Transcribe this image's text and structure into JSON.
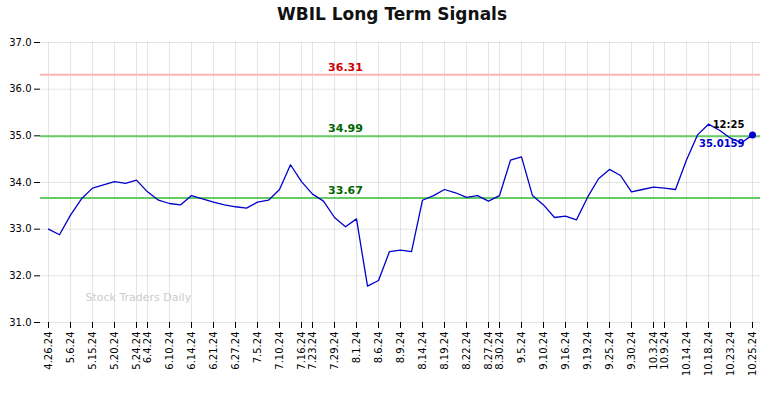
{
  "chart_data": {
    "type": "line",
    "title": "WBIL Long Term Signals",
    "color": "#0000cc",
    "grid": true,
    "ylim": [
      31,
      37
    ],
    "yticks": [
      31,
      32,
      33,
      34,
      35,
      36,
      37
    ],
    "categories": [
      "4.26.24",
      null,
      "5.6.24",
      null,
      "5.15.24",
      null,
      "5.20.24",
      null,
      "5.24.24",
      "6.4.24",
      null,
      "6.10.24",
      null,
      "6.14.24",
      null,
      "6.21.24",
      null,
      "6.27.24",
      null,
      "7.5.24",
      null,
      "7.10.24",
      null,
      "7.16.24",
      "7.23.24",
      null,
      "7.29.24",
      null,
      "8.1.24",
      null,
      "8.6.24",
      null,
      "8.9.24",
      null,
      "8.14.24",
      null,
      "8.19.24",
      null,
      "8.22.24",
      null,
      "8.27.24",
      "8.30.24",
      null,
      "9.5.24",
      null,
      "9.10.24",
      null,
      "9.16.24",
      null,
      "9.19.24",
      null,
      "9.25.24",
      null,
      "9.30.24",
      null,
      "10.3.24",
      "10.9.24",
      null,
      "10.14.24",
      null,
      "10.18.24",
      null,
      "10.23.24",
      null,
      "10.25.24"
    ],
    "values": [
      33.0,
      32.88,
      33.3,
      33.65,
      33.88,
      33.95,
      34.02,
      33.98,
      34.05,
      33.8,
      33.62,
      33.55,
      33.52,
      33.72,
      33.65,
      33.58,
      33.52,
      33.48,
      33.45,
      33.58,
      33.62,
      33.85,
      34.38,
      34.02,
      33.75,
      33.6,
      33.25,
      33.05,
      33.22,
      31.78,
      31.9,
      32.52,
      32.55,
      32.52,
      33.62,
      33.72,
      33.85,
      33.78,
      33.68,
      33.72,
      33.6,
      33.72,
      34.48,
      34.55,
      33.72,
      33.52,
      33.25,
      33.28,
      33.2,
      33.68,
      34.08,
      34.28,
      34.15,
      33.8,
      33.85,
      33.9,
      33.88,
      33.85,
      34.48,
      35.02,
      35.25,
      35.12,
      34.95,
      34.85,
      35.02
    ],
    "hlines": [
      {
        "value": 36.31,
        "label": "36.31",
        "color": "#ffb3b3",
        "label_color": "#cc0000"
      },
      {
        "value": 34.99,
        "label": "34.99",
        "color": "#66cc66",
        "label_color": "#006600"
      },
      {
        "value": 33.67,
        "label": "33.67",
        "color": "#66cc66",
        "label_color": "#006600"
      }
    ],
    "annotations": [
      {
        "text": "12:25",
        "color": "#000000"
      },
      {
        "text": "35.0159",
        "color": "#0000cc"
      }
    ],
    "watermark": "Stock Traders Daily"
  }
}
